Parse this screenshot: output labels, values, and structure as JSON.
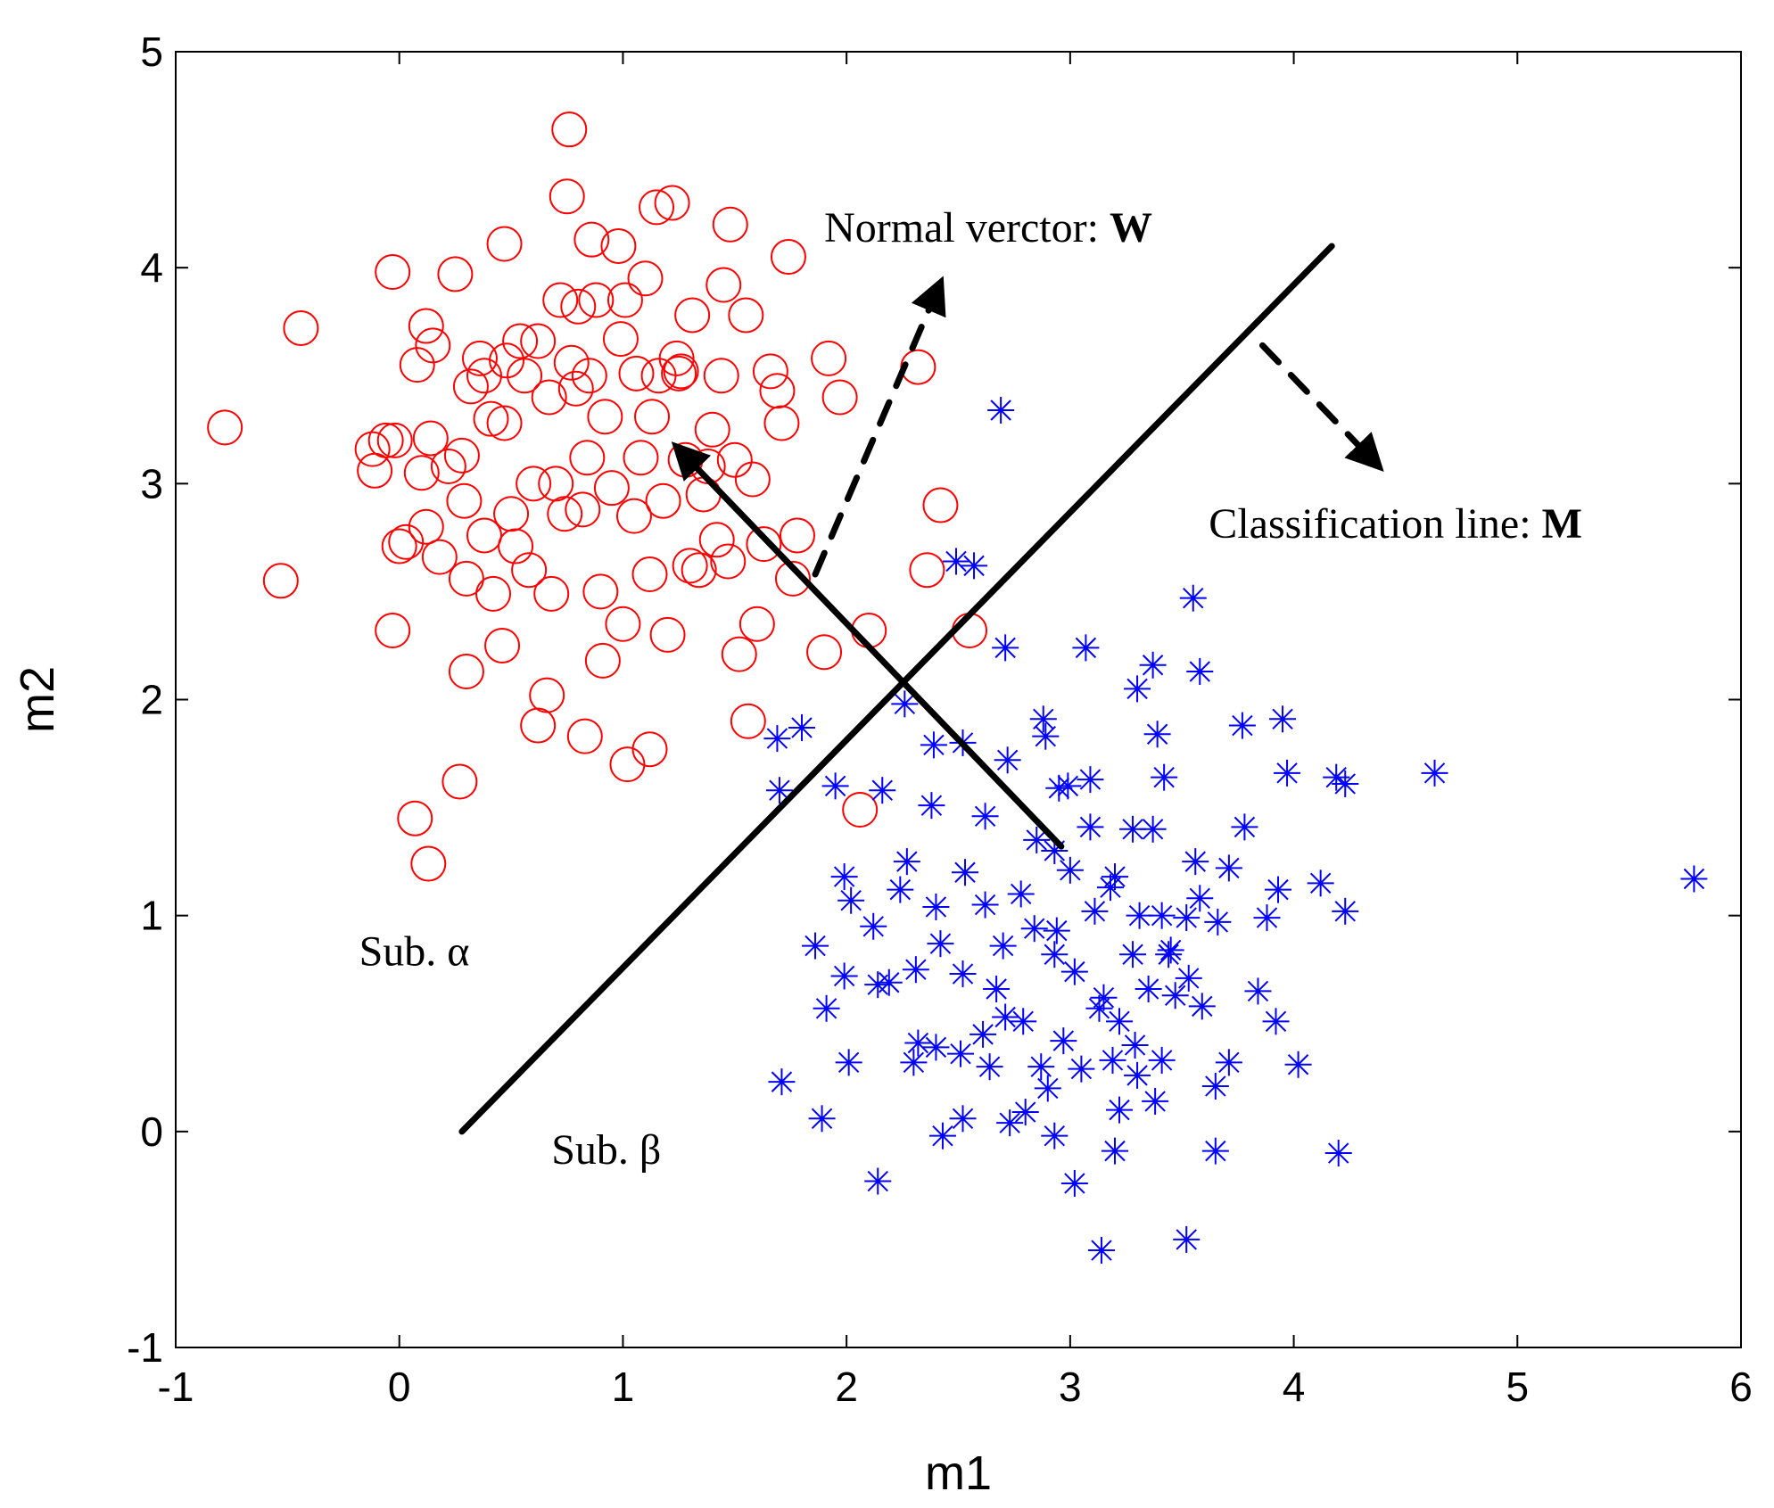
{
  "chart_data": {
    "type": "scatter",
    "xlabel": "m1",
    "ylabel": "m2",
    "xlim": [
      -1,
      6
    ],
    "ylim": [
      -1,
      5
    ],
    "xticks": [
      "-1",
      "0",
      "1",
      "2",
      "3",
      "4",
      "5",
      "6"
    ],
    "yticks": [
      "-1",
      "0",
      "1",
      "2",
      "3",
      "4",
      "5"
    ],
    "grid": false,
    "colors": {
      "alpha": "#ff0000",
      "beta": "#0000ff",
      "lines": "#000000"
    },
    "series": [
      {
        "name": "Sub. alpha",
        "marker": "circle",
        "color": "#ff0000",
        "points": [
          [
            -0.78,
            3.26
          ],
          [
            -0.44,
            3.72
          ],
          [
            -0.53,
            2.55
          ],
          [
            -0.12,
            3.16
          ],
          [
            -0.11,
            3.06
          ],
          [
            -0.06,
            3.2
          ],
          [
            -0.03,
            3.98
          ],
          [
            -0.02,
            3.2
          ],
          [
            -0.03,
            2.32
          ],
          [
            0.0,
            2.71
          ],
          [
            0.03,
            2.73
          ],
          [
            0.08,
            3.55
          ],
          [
            0.1,
            3.05
          ],
          [
            0.12,
            3.73
          ],
          [
            0.14,
            3.21
          ],
          [
            0.15,
            3.64
          ],
          [
            0.12,
            2.8
          ],
          [
            0.18,
            2.66
          ],
          [
            0.25,
            3.97
          ],
          [
            0.22,
            3.08
          ],
          [
            0.28,
            3.13
          ],
          [
            0.29,
            2.92
          ],
          [
            0.3,
            2.56
          ],
          [
            0.3,
            2.13
          ],
          [
            0.32,
            3.45
          ],
          [
            0.36,
            3.58
          ],
          [
            0.38,
            3.5
          ],
          [
            0.38,
            2.76
          ],
          [
            0.41,
            3.3
          ],
          [
            0.42,
            2.49
          ],
          [
            0.47,
            4.11
          ],
          [
            0.48,
            3.57
          ],
          [
            0.47,
            3.28
          ],
          [
            0.46,
            2.25
          ],
          [
            0.5,
            2.86
          ],
          [
            0.52,
            2.71
          ],
          [
            0.54,
            3.66
          ],
          [
            0.56,
            3.5
          ],
          [
            0.58,
            2.6
          ],
          [
            0.6,
            3.0
          ],
          [
            0.62,
            3.66
          ],
          [
            0.66,
            2.02
          ],
          [
            0.67,
            3.4
          ],
          [
            0.68,
            2.49
          ],
          [
            0.7,
            3.0
          ],
          [
            0.72,
            3.85
          ],
          [
            0.74,
            2.86
          ],
          [
            0.75,
            4.33
          ],
          [
            0.76,
            4.64
          ],
          [
            0.77,
            3.56
          ],
          [
            0.79,
            3.44
          ],
          [
            0.8,
            3.82
          ],
          [
            0.82,
            2.88
          ],
          [
            0.84,
            3.12
          ],
          [
            0.85,
            3.5
          ],
          [
            0.86,
            4.13
          ],
          [
            0.88,
            3.85
          ],
          [
            0.9,
            2.5
          ],
          [
            0.91,
            2.18
          ],
          [
            0.92,
            3.31
          ],
          [
            0.95,
            2.98
          ],
          [
            0.98,
            4.1
          ],
          [
            0.99,
            3.67
          ],
          [
            1.0,
            2.35
          ],
          [
            1.01,
            3.85
          ],
          [
            1.02,
            1.7
          ],
          [
            1.05,
            2.85
          ],
          [
            1.06,
            3.51
          ],
          [
            1.08,
            3.12
          ],
          [
            1.1,
            3.95
          ],
          [
            1.12,
            2.58
          ],
          [
            1.13,
            3.31
          ],
          [
            1.15,
            4.28
          ],
          [
            1.16,
            3.5
          ],
          [
            1.18,
            2.92
          ],
          [
            1.2,
            2.3
          ],
          [
            1.22,
            4.3
          ],
          [
            1.24,
            3.58
          ],
          [
            1.25,
            3.51
          ],
          [
            1.26,
            3.52
          ],
          [
            1.28,
            3.11
          ],
          [
            1.3,
            2.62
          ],
          [
            1.31,
            3.78
          ],
          [
            1.34,
            2.6
          ],
          [
            1.36,
            2.95
          ],
          [
            1.38,
            3.08
          ],
          [
            1.4,
            3.25
          ],
          [
            1.42,
            2.74
          ],
          [
            1.44,
            3.5
          ],
          [
            1.45,
            3.92
          ],
          [
            1.47,
            2.64
          ],
          [
            1.48,
            4.2
          ],
          [
            1.5,
            3.11
          ],
          [
            1.52,
            2.21
          ],
          [
            1.55,
            3.78
          ],
          [
            1.56,
            1.9
          ],
          [
            1.58,
            3.02
          ],
          [
            1.6,
            2.35
          ],
          [
            1.63,
            2.72
          ],
          [
            1.66,
            3.52
          ],
          [
            1.69,
            3.43
          ],
          [
            1.71,
            3.28
          ],
          [
            1.74,
            4.05
          ],
          [
            1.76,
            2.56
          ],
          [
            1.78,
            2.76
          ],
          [
            1.92,
            3.58
          ],
          [
            1.97,
            3.4
          ],
          [
            1.9,
            2.22
          ],
          [
            2.1,
            2.32
          ],
          [
            2.06,
            1.49
          ],
          [
            2.32,
            3.54
          ],
          [
            2.36,
            2.6
          ],
          [
            2.42,
            2.9
          ],
          [
            2.55,
            2.32
          ],
          [
            0.07,
            1.45
          ],
          [
            0.13,
            1.24
          ],
          [
            0.27,
            1.62
          ],
          [
            1.12,
            1.77
          ],
          [
            0.83,
            1.83
          ],
          [
            0.62,
            1.88
          ]
        ]
      },
      {
        "name": "Sub. beta",
        "marker": "asterisk",
        "color": "#0000ff",
        "points": [
          [
            2.69,
            3.34
          ],
          [
            2.49,
            2.64
          ],
          [
            2.57,
            2.62
          ],
          [
            3.55,
            2.47
          ],
          [
            2.71,
            2.24
          ],
          [
            3.07,
            2.24
          ],
          [
            3.58,
            2.13
          ],
          [
            2.26,
            1.98
          ],
          [
            2.39,
            1.79
          ],
          [
            3.37,
            2.16
          ],
          [
            1.8,
            1.87
          ],
          [
            1.69,
            1.82
          ],
          [
            1.7,
            1.58
          ],
          [
            1.95,
            1.6
          ],
          [
            2.16,
            1.58
          ],
          [
            2.38,
            1.51
          ],
          [
            2.62,
            1.46
          ],
          [
            2.88,
            1.91
          ],
          [
            3.09,
            1.63
          ],
          [
            3.3,
            2.05
          ],
          [
            3.39,
            1.84
          ],
          [
            3.42,
            1.64
          ],
          [
            3.77,
            1.88
          ],
          [
            3.95,
            1.91
          ],
          [
            3.97,
            1.66
          ],
          [
            4.19,
            1.64
          ],
          [
            4.23,
            1.61
          ],
          [
            4.63,
            1.66
          ],
          [
            5.79,
            1.17
          ],
          [
            4.12,
            1.15
          ],
          [
            4.23,
            1.02
          ],
          [
            3.93,
            1.12
          ],
          [
            3.78,
            1.41
          ],
          [
            3.71,
            1.22
          ],
          [
            3.56,
            1.25
          ],
          [
            3.41,
            1.0
          ],
          [
            3.52,
            0.99
          ],
          [
            3.18,
            1.13
          ],
          [
            3.0,
            1.21
          ],
          [
            2.85,
            1.35
          ],
          [
            2.93,
            1.3
          ],
          [
            2.53,
            1.2
          ],
          [
            2.27,
            1.25
          ],
          [
            1.99,
            1.18
          ],
          [
            2.02,
            1.07
          ],
          [
            2.24,
            1.12
          ],
          [
            2.4,
            1.04
          ],
          [
            2.62,
            1.05
          ],
          [
            2.78,
            1.1
          ],
          [
            2.94,
            0.93
          ],
          [
            3.11,
            1.02
          ],
          [
            3.31,
            1.0
          ],
          [
            3.28,
            0.82
          ],
          [
            3.45,
            0.84
          ],
          [
            3.53,
            0.71
          ],
          [
            3.66,
            0.97
          ],
          [
            3.88,
            0.99
          ],
          [
            1.86,
            0.86
          ],
          [
            1.99,
            0.72
          ],
          [
            2.19,
            0.69
          ],
          [
            2.31,
            0.75
          ],
          [
            2.42,
            0.87
          ],
          [
            2.52,
            0.73
          ],
          [
            2.67,
            0.66
          ],
          [
            2.79,
            0.51
          ],
          [
            2.93,
            0.82
          ],
          [
            3.02,
            0.74
          ],
          [
            3.15,
            0.62
          ],
          [
            3.22,
            0.51
          ],
          [
            3.35,
            0.66
          ],
          [
            3.47,
            0.63
          ],
          [
            3.59,
            0.58
          ],
          [
            3.84,
            0.65
          ],
          [
            3.92,
            0.51
          ],
          [
            1.91,
            0.57
          ],
          [
            2.14,
            0.68
          ],
          [
            2.4,
            0.39
          ],
          [
            2.51,
            0.36
          ],
          [
            2.61,
            0.45
          ],
          [
            2.71,
            0.53
          ],
          [
            2.87,
            0.3
          ],
          [
            2.97,
            0.42
          ],
          [
            3.05,
            0.29
          ],
          [
            3.19,
            0.33
          ],
          [
            3.29,
            0.4
          ],
          [
            3.41,
            0.33
          ],
          [
            3.71,
            0.32
          ],
          [
            4.02,
            0.31
          ],
          [
            1.71,
            0.23
          ],
          [
            1.89,
            0.06
          ],
          [
            2.52,
            0.06
          ],
          [
            2.73,
            0.04
          ],
          [
            2.8,
            0.09
          ],
          [
            2.93,
            -0.02
          ],
          [
            3.22,
            0.1
          ],
          [
            3.38,
            0.14
          ],
          [
            3.65,
            0.21
          ],
          [
            2.43,
            -0.02
          ],
          [
            3.2,
            -0.09
          ],
          [
            3.65,
            -0.09
          ],
          [
            4.2,
            -0.1
          ],
          [
            2.14,
            -0.23
          ],
          [
            3.02,
            -0.24
          ],
          [
            3.14,
            -0.55
          ],
          [
            3.52,
            -0.5
          ],
          [
            2.01,
            0.32
          ],
          [
            2.3,
            0.32
          ],
          [
            3.28,
            1.4
          ],
          [
            2.95,
            1.59
          ],
          [
            2.52,
            1.8
          ],
          [
            2.72,
            1.72
          ],
          [
            2.89,
            1.83
          ],
          [
            2.99,
            1.6
          ],
          [
            3.09,
            1.41
          ],
          [
            3.2,
            1.18
          ],
          [
            3.37,
            1.4
          ],
          [
            3.58,
            1.08
          ],
          [
            2.7,
            0.86
          ],
          [
            2.84,
            0.94
          ],
          [
            2.12,
            0.95
          ],
          [
            2.32,
            0.41
          ],
          [
            2.64,
            0.3
          ],
          [
            2.9,
            0.2
          ],
          [
            3.13,
            0.57
          ],
          [
            3.3,
            0.26
          ],
          [
            3.44,
            0.82
          ]
        ]
      }
    ],
    "lines": [
      {
        "name": "classification-line",
        "style": "solid",
        "x": [
          0.28,
          4.17
        ],
        "y": [
          0.0,
          4.1
        ]
      },
      {
        "name": "normal-vector-arrow",
        "style": "solid-arrow",
        "x": [
          2.96,
          1.24
        ],
        "y": [
          1.32,
          3.17
        ]
      },
      {
        "name": "dashed-arrow-w",
        "style": "dashed-arrow",
        "x": [
          1.86,
          2.42
        ],
        "y": [
          2.58,
          3.93
        ]
      },
      {
        "name": "dashed-arrow-m",
        "style": "dashed-arrow",
        "x": [
          3.86,
          4.38
        ],
        "y": [
          3.64,
          3.08
        ]
      }
    ],
    "annotations": [
      {
        "name": "normal-vector-label",
        "prefix": "Normal verctor: ",
        "bold": "W",
        "x": 1.9,
        "y": 4.12
      },
      {
        "name": "classification-line-label",
        "prefix": "Classification line: ",
        "bold": "M",
        "x": 3.62,
        "y": 2.75
      },
      {
        "name": "sub-alpha-label",
        "text": "Sub. α",
        "x": -0.18,
        "y": 0.77
      },
      {
        "name": "sub-beta-label",
        "text": "Sub. β",
        "x": 0.68,
        "y": -0.15
      }
    ]
  }
}
